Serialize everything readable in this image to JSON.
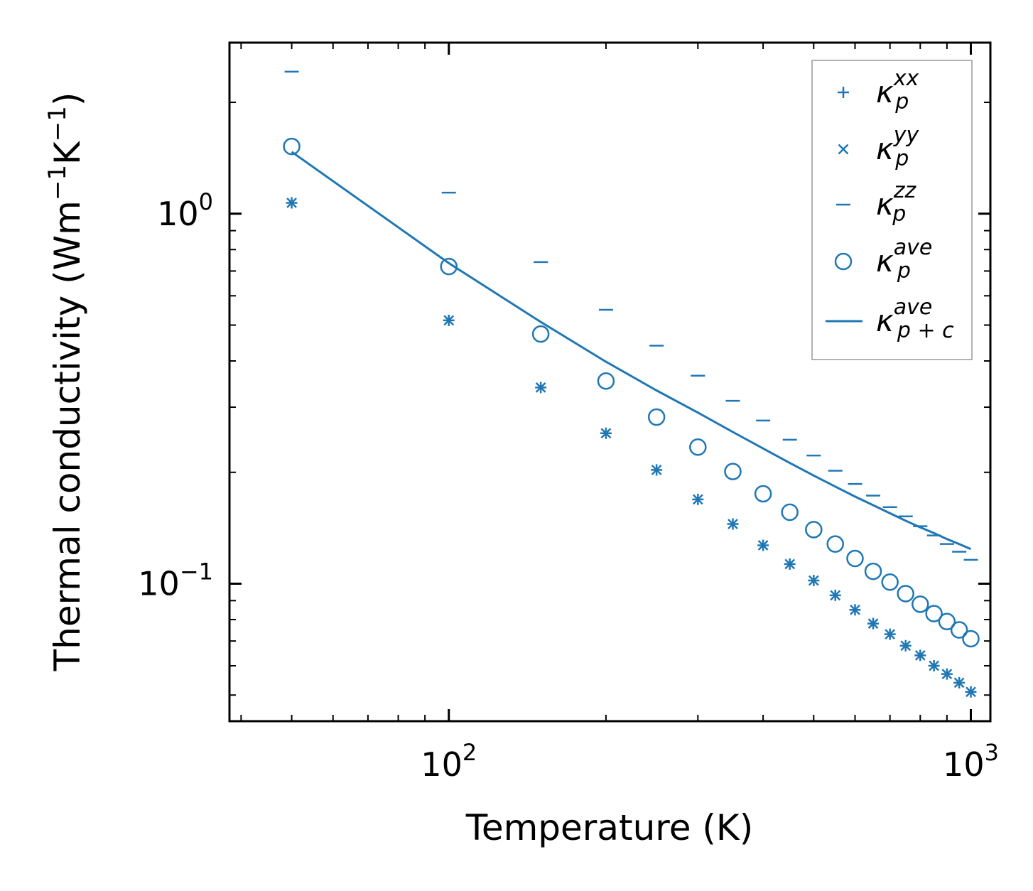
{
  "chart_data": {
    "type": "scatter",
    "title": "",
    "xlabel": "Temperature (K)",
    "ylabel": "Thermal conductivity (Wm",
    "ylabel_sup1": "−1",
    "ylabel_mid": "K",
    "ylabel_sup2": "−1",
    "ylabel_end": ")",
    "xscale": "log",
    "yscale": "log",
    "xlim": [
      38,
      1090
    ],
    "ylim": [
      0.0425,
      2.9
    ],
    "grid": false,
    "legend_position": "top-right",
    "color": "#1f77b4",
    "x_ticks": [
      {
        "value": 100,
        "base": "10",
        "exp": "2"
      },
      {
        "value": 1000,
        "base": "10",
        "exp": "3"
      }
    ],
    "y_ticks": [
      {
        "value": 0.1,
        "base": "10",
        "exp": "−1"
      },
      {
        "value": 1,
        "base": "10",
        "exp": "0"
      }
    ],
    "x": [
      50,
      100,
      150,
      200,
      250,
      300,
      350,
      400,
      450,
      500,
      550,
      600,
      650,
      700,
      750,
      800,
      850,
      900,
      950,
      1000
    ],
    "series": [
      {
        "name": "κ_p^xx",
        "symbol": "κ",
        "sub": "p",
        "sup": "xx",
        "marker": "plus",
        "values": [
          1.07,
          0.515,
          0.339,
          0.255,
          0.203,
          0.169,
          0.145,
          0.127,
          0.113,
          0.102,
          0.093,
          0.085,
          0.078,
          0.073,
          0.068,
          0.064,
          0.06,
          0.057,
          0.054,
          0.051
        ]
      },
      {
        "name": "κ_p^yy",
        "symbol": "κ",
        "sub": "p",
        "sup": "yy",
        "marker": "x",
        "values": [
          1.07,
          0.515,
          0.339,
          0.255,
          0.203,
          0.169,
          0.145,
          0.127,
          0.113,
          0.102,
          0.093,
          0.085,
          0.078,
          0.073,
          0.068,
          0.064,
          0.06,
          0.057,
          0.054,
          0.051
        ]
      },
      {
        "name": "κ_p^zz",
        "symbol": "κ",
        "sub": "p",
        "sup": "zz",
        "marker": "hline",
        "values": [
          2.42,
          1.14,
          0.74,
          0.55,
          0.44,
          0.365,
          0.312,
          0.276,
          0.245,
          0.222,
          0.202,
          0.186,
          0.173,
          0.161,
          0.152,
          0.143,
          0.135,
          0.128,
          0.122,
          0.116
        ]
      },
      {
        "name": "κ_p^ave",
        "symbol": "κ",
        "sub": "p",
        "sup": "ave",
        "marker": "circle",
        "values": [
          1.52,
          0.72,
          0.473,
          0.353,
          0.282,
          0.234,
          0.201,
          0.175,
          0.156,
          0.14,
          0.128,
          0.117,
          0.108,
          0.101,
          0.094,
          0.088,
          0.083,
          0.079,
          0.075,
          0.071
        ]
      },
      {
        "name": "κ_p+c^ave",
        "symbol": "κ",
        "sub": "p + c",
        "sup": "ave",
        "marker": "line",
        "values": [
          1.47,
          0.735,
          0.51,
          0.398,
          0.333,
          0.29,
          0.257,
          0.232,
          0.212,
          0.196,
          0.183,
          0.172,
          0.163,
          0.155,
          0.148,
          0.142,
          0.137,
          0.132,
          0.128,
          0.124
        ]
      }
    ]
  }
}
